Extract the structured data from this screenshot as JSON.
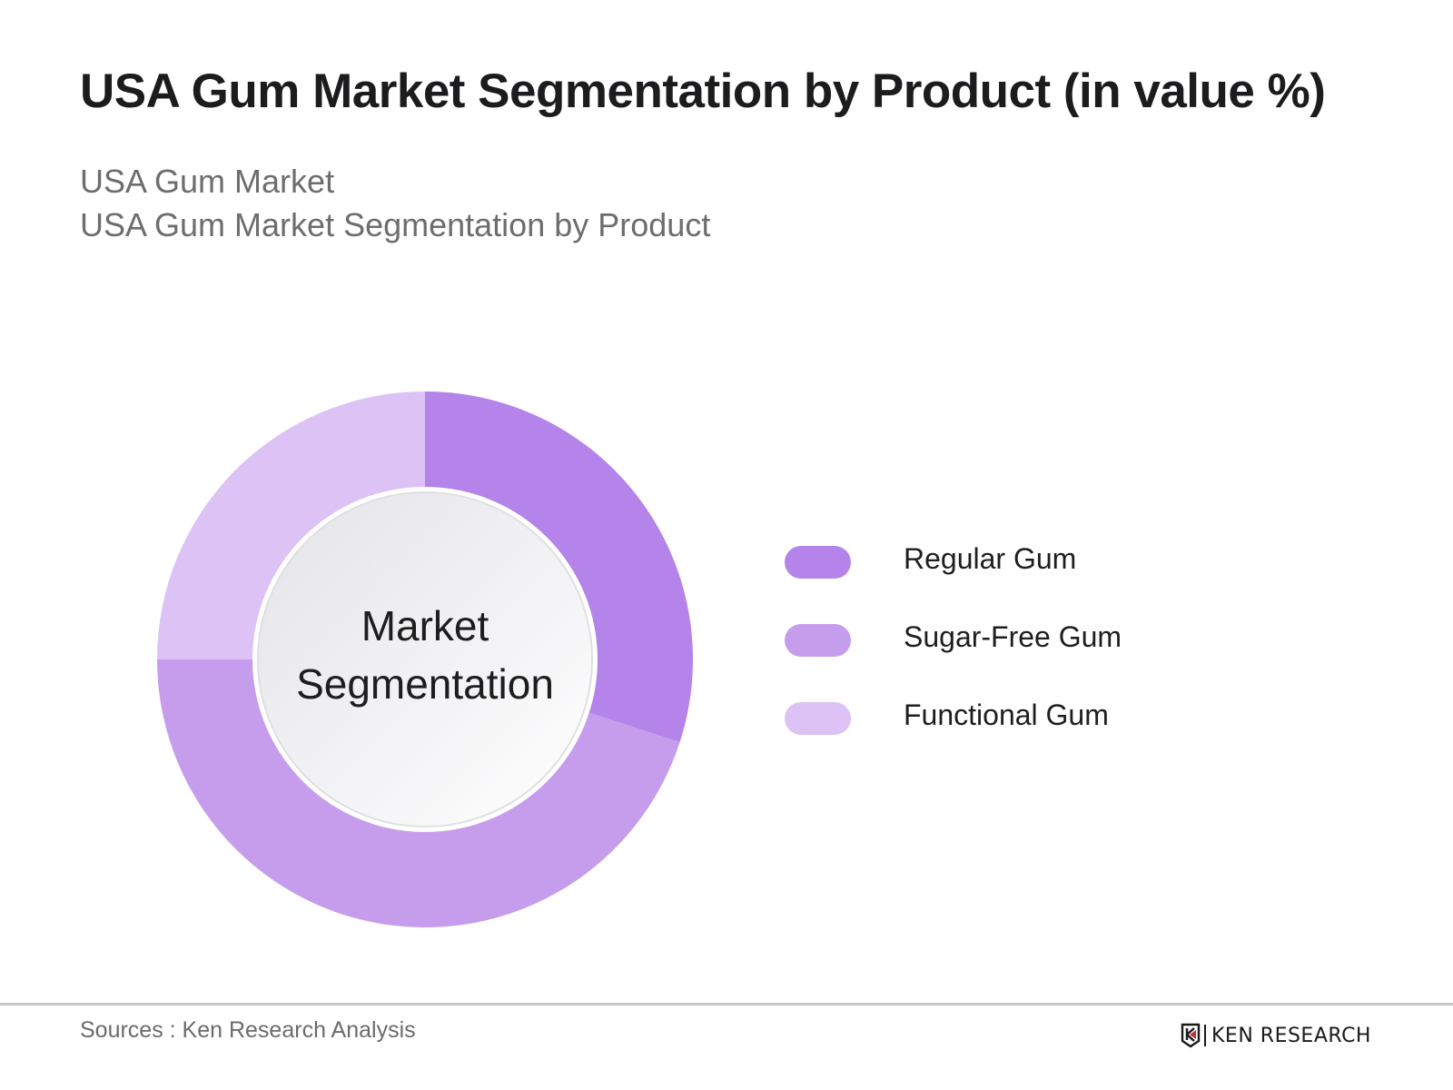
{
  "header": {
    "title": "USA Gum Market Segmentation by Product (in value %)",
    "subtitle_line1": "USA Gum Market",
    "subtitle_line2": "USA Gum Market Segmentation by Product"
  },
  "donut": {
    "center_line1": "Market",
    "center_line2": "Segmentation"
  },
  "legend": [
    {
      "label": "Regular Gum",
      "color": "#b484ea"
    },
    {
      "label": "Sugar-Free Gum",
      "color": "#c69ded"
    },
    {
      "label": "Functional Gum",
      "color": "#dcc2f5"
    }
  ],
  "footer": {
    "source": "Sources : Ken Research Analysis",
    "logo_text": "KEN RESEARCH",
    "logo_icon": "ken-research-k-shield-icon"
  },
  "chart_data": {
    "type": "pie",
    "title": "USA Gum Market Segmentation by Product (in value %)",
    "subtitle": "USA Gum Market / USA Gum Market Segmentation by Product",
    "categories": [
      "Regular Gum",
      "Sugar-Free Gum",
      "Functional Gum"
    ],
    "values": [
      30,
      45,
      25
    ],
    "colors": [
      "#b484ea",
      "#c69ded",
      "#dcc2f5"
    ],
    "donut": true,
    "center_label": "Market Segmentation",
    "start_angle_deg": 0,
    "direction": "clockwise",
    "legend_position": "right",
    "data_labels_shown": false,
    "source": "Sources : Ken Research Analysis"
  }
}
